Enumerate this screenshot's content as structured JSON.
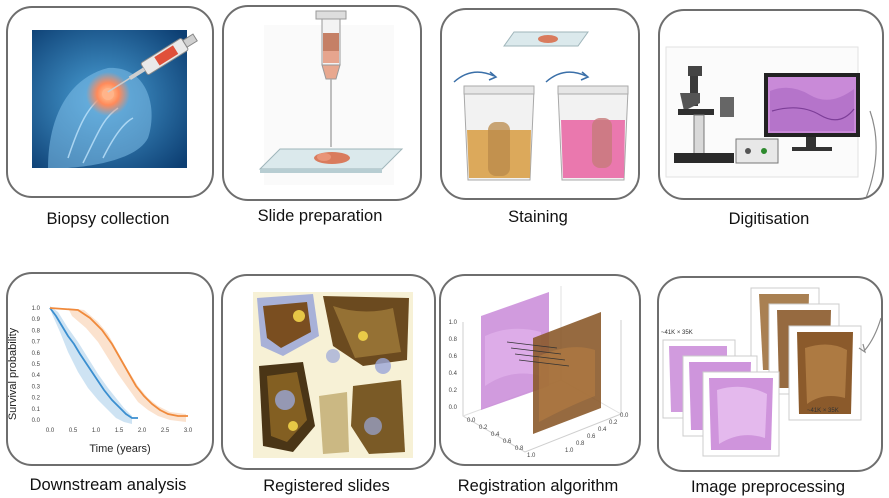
{
  "steps": {
    "biopsy": "Biopsy collection",
    "slide_prep": "Slide preparation",
    "staining": "Staining",
    "digitisation": "Digitisation",
    "downstream": "Downstream analysis",
    "registered": "Registered slides",
    "registration": "Registration algorithm",
    "preprocessing": "Image preprocessing"
  },
  "survival_plot": {
    "ylabel": "Survival probability",
    "xlabel": "Time (years)",
    "yticks": [
      "0.0",
      "0.1",
      "0.2",
      "0.3",
      "0.4",
      "0.5",
      "0.6",
      "0.7",
      "0.8",
      "0.9",
      "1.0"
    ],
    "xticks": [
      "0.0",
      "0.5",
      "1.0",
      "1.5",
      "2.0",
      "2.5",
      "3.0"
    ]
  },
  "registration_plot": {
    "left_ticks": [
      "1.0",
      "0.8",
      "0.6",
      "0.4",
      "0.2",
      "0.0"
    ],
    "bottom_left_ticks": [
      "0.0",
      "0.2",
      "0.4",
      "0.6",
      "0.8",
      "1.0"
    ],
    "bottom_right_ticks": [
      "1.0",
      "0.8",
      "0.6",
      "0.4",
      "0.2",
      "0.0"
    ]
  },
  "preprocessing": {
    "size_label_left": "~41K × 35K",
    "size_label_right": "~41K × 35K"
  },
  "colors": {
    "border": "#6e6e6e",
    "km_blue": "#3b8fd0",
    "km_orange": "#f08a3c",
    "he_pink": "#c98ad8",
    "dab_brown": "#8b5a2b"
  }
}
